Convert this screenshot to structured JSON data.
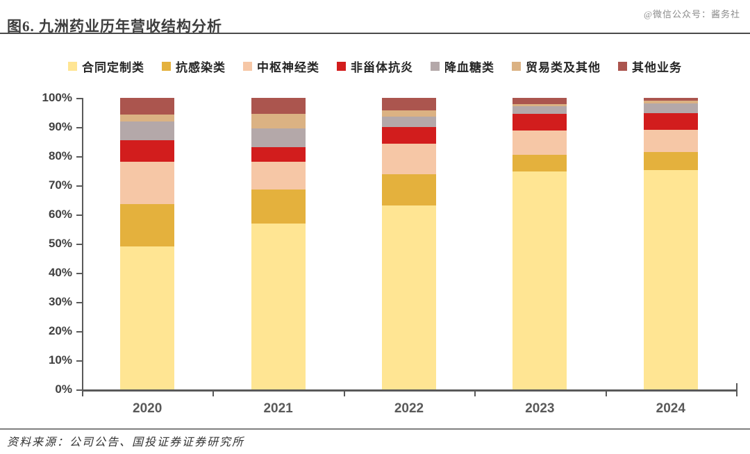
{
  "title": "图6. 九洲药业历年营收结构分析",
  "watermark": "@微信公众号：酱务社",
  "source": "资料来源：公司公告、国投证券证券研究所",
  "chart_data": {
    "type": "bar",
    "stacked": true,
    "percent_stacked": true,
    "title": "九洲药业历年营收结构分析",
    "categories": [
      "2020",
      "2021",
      "2022",
      "2023",
      "2024"
    ],
    "series": [
      {
        "name": "合同定制类",
        "color": "#FFE593",
        "values": [
          49.0,
          56.9,
          63.1,
          74.8,
          75.2
        ]
      },
      {
        "name": "抗感染类",
        "color": "#E4B13D",
        "values": [
          14.5,
          11.7,
          10.7,
          5.7,
          6.2
        ]
      },
      {
        "name": "中枢神经类",
        "color": "#F6C7A6",
        "values": [
          14.5,
          9.5,
          10.5,
          8.3,
          7.6
        ]
      },
      {
        "name": "非甾体抗炎",
        "color": "#D21D1D",
        "values": [
          7.6,
          5.0,
          5.7,
          5.7,
          5.7
        ]
      },
      {
        "name": "降血糖类",
        "color": "#B4A8A9",
        "values": [
          6.2,
          6.4,
          3.6,
          2.6,
          3.5
        ]
      },
      {
        "name": "贸易类及其他",
        "color": "#DBB283",
        "values": [
          2.4,
          5.0,
          2.1,
          0.8,
          0.9
        ]
      },
      {
        "name": "其他业务",
        "color": "#AB554E",
        "values": [
          5.8,
          5.5,
          4.3,
          2.1,
          0.9
        ]
      }
    ],
    "xlabel": "",
    "ylabel": "",
    "ylim": [
      0,
      100
    ],
    "yticks": [
      "0%",
      "10%",
      "20%",
      "30%",
      "40%",
      "50%",
      "60%",
      "70%",
      "80%",
      "90%",
      "100%"
    ],
    "grid": false,
    "legend_position": "top",
    "axis_color": "#595959"
  }
}
